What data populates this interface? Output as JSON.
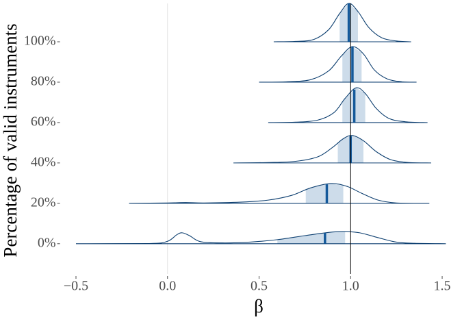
{
  "chart_data": {
    "type": "ridgeline",
    "x_label": "β",
    "y_label": "Percentage of valid instruments",
    "xlim": [
      -0.58,
      1.55
    ],
    "ylim": [
      -0.75,
      5.95
    ],
    "xticks": [
      {
        "value": -0.5,
        "label": "−0.5"
      },
      {
        "value": 0,
        "label": "0.0"
      },
      {
        "value": 0.5,
        "label": "0.5"
      },
      {
        "value": 1,
        "label": "1.0"
      },
      {
        "value": 1.5,
        "label": "1.5"
      }
    ],
    "xgrid": [
      0
    ],
    "reference_line": 1,
    "line_color": "#0d3f70",
    "interval_color": "#cddcea",
    "median_color": "#14599a",
    "categories": [
      "0%",
      "20%",
      "40%",
      "60%",
      "80%",
      "100%"
    ],
    "series": [
      {
        "name": "0%",
        "x": [
          -0.5,
          -0.1,
          0.0,
          0.05,
          0.08,
          0.12,
          0.18,
          0.3,
          0.45,
          0.6,
          0.75,
          0.88,
          0.97,
          1.05,
          1.15,
          1.25,
          1.35,
          1.52
        ],
        "density": [
          0,
          0.005,
          0.06,
          0.22,
          0.27,
          0.2,
          0.05,
          0.02,
          0.04,
          0.1,
          0.2,
          0.28,
          0.3,
          0.27,
          0.15,
          0.04,
          0.01,
          0
        ],
        "median": 0.86,
        "interval": [
          0.6,
          0.97
        ]
      },
      {
        "name": "20%",
        "x": [
          -0.21,
          0.0,
          0.1,
          0.2,
          0.4,
          0.55,
          0.68,
          0.78,
          0.89,
          0.98,
          1.06,
          1.15,
          1.25,
          1.43
        ],
        "density": [
          0,
          0.01,
          0.02,
          0.01,
          0.03,
          0.08,
          0.2,
          0.38,
          0.49,
          0.42,
          0.25,
          0.08,
          0.01,
          0
        ],
        "median": 0.87,
        "interval": [
          0.755,
          0.96
        ]
      },
      {
        "name": "40%",
        "x": [
          0.36,
          0.55,
          0.7,
          0.82,
          0.9,
          0.96,
          1.01,
          1.07,
          1.14,
          1.22,
          1.32,
          1.44
        ],
        "density": [
          0,
          0.01,
          0.04,
          0.15,
          0.38,
          0.6,
          0.68,
          0.55,
          0.28,
          0.08,
          0.01,
          0
        ],
        "median": 1.0,
        "interval": [
          0.93,
          1.07
        ]
      },
      {
        "name": "60%",
        "x": [
          0.55,
          0.7,
          0.82,
          0.91,
          0.97,
          1.03,
          1.08,
          1.14,
          1.21,
          1.3,
          1.42
        ],
        "density": [
          0,
          0.01,
          0.06,
          0.25,
          0.6,
          0.86,
          0.72,
          0.35,
          0.1,
          0.02,
          0
        ],
        "median": 1.02,
        "interval": [
          0.955,
          1.08
        ]
      },
      {
        "name": "80%",
        "x": [
          0.5,
          0.65,
          0.78,
          0.88,
          0.95,
          1.01,
          1.07,
          1.13,
          1.2,
          1.28,
          1.36
        ],
        "density": [
          0,
          0.01,
          0.06,
          0.28,
          0.65,
          0.88,
          0.7,
          0.3,
          0.08,
          0.01,
          0
        ],
        "median": 1.01,
        "interval": [
          0.955,
          1.06
        ]
      },
      {
        "name": "100%",
        "x": [
          0.58,
          0.7,
          0.8,
          0.88,
          0.94,
          0.99,
          1.04,
          1.1,
          1.17,
          1.25,
          1.33
        ],
        "density": [
          0,
          0.01,
          0.06,
          0.3,
          0.7,
          0.95,
          0.75,
          0.35,
          0.1,
          0.02,
          0
        ],
        "median": 0.99,
        "interval": [
          0.94,
          1.04
        ]
      }
    ]
  }
}
